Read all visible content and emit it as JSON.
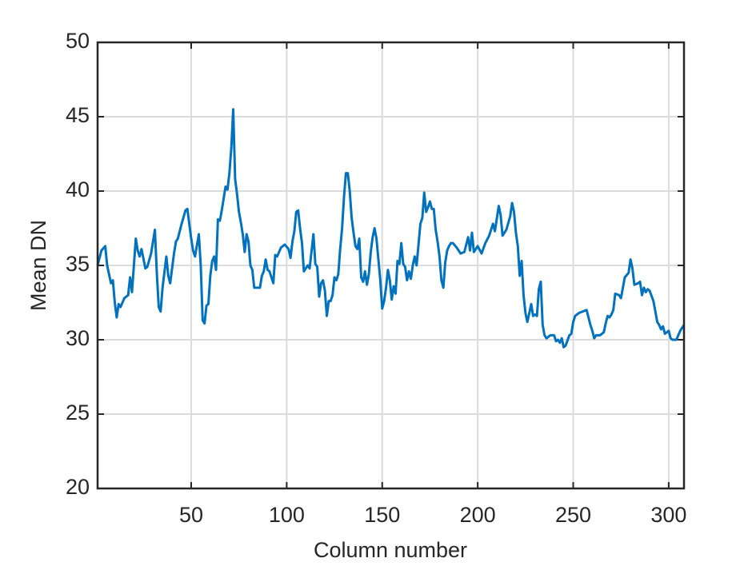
{
  "chart_data": {
    "type": "line",
    "x_label": "Column number",
    "y_label": "Mean DN",
    "xlim": [
      1,
      308
    ],
    "ylim": [
      20,
      50
    ],
    "xticks": [
      50,
      100,
      150,
      200,
      250,
      300
    ],
    "yticks": [
      20,
      25,
      30,
      35,
      40,
      45,
      50
    ],
    "grid": true,
    "series": [
      {
        "name": "Mean DN",
        "color": "#0072bd",
        "x": [
          1,
          3,
          5,
          6,
          8,
          9,
          10,
          11,
          12,
          13,
          15,
          17,
          18,
          19,
          21,
          22,
          23,
          24,
          26,
          27,
          29,
          31,
          32,
          33,
          34,
          35,
          37,
          38,
          39,
          41,
          42,
          43,
          45,
          47,
          48,
          49,
          50,
          51,
          52,
          54,
          55,
          56,
          57,
          58,
          59,
          60,
          61,
          62,
          63,
          64,
          65,
          66,
          67,
          68,
          69,
          70,
          71,
          72,
          73,
          74,
          75,
          76,
          77,
          78,
          79,
          80,
          81,
          82,
          83,
          86,
          87,
          88,
          89,
          90,
          91,
          93,
          94,
          95,
          97,
          99,
          101,
          102,
          103,
          104,
          105,
          106,
          107,
          108,
          109,
          110,
          111,
          112,
          114,
          115,
          116,
          117,
          118,
          119,
          120,
          121,
          122,
          123,
          124,
          125,
          126,
          127,
          128,
          129,
          130,
          131,
          132,
          133,
          134,
          135,
          136,
          137,
          138,
          139,
          140,
          141,
          142,
          143,
          144,
          145,
          146,
          147,
          148,
          149,
          150,
          151,
          152,
          153,
          154,
          155,
          156,
          157,
          158,
          159,
          160,
          161,
          162,
          163,
          164,
          165,
          166,
          167,
          168,
          169,
          170,
          171,
          172,
          173,
          174,
          175,
          176,
          177,
          178,
          179,
          180,
          181,
          182,
          183,
          184,
          185,
          186,
          187,
          189,
          191,
          193,
          195,
          196,
          197,
          198,
          200,
          202,
          204,
          206,
          208,
          209,
          211,
          212,
          213,
          215,
          217,
          218,
          219,
          220,
          221,
          222,
          223,
          224,
          225,
          226,
          227,
          228,
          229,
          230,
          231,
          232,
          233,
          234,
          235,
          236,
          238,
          240,
          241,
          242,
          243,
          244,
          245,
          246,
          248,
          249,
          250,
          251,
          253,
          255,
          257,
          258,
          259,
          260,
          261,
          262,
          264,
          266,
          267,
          268,
          269,
          270,
          271,
          272,
          274,
          275,
          276,
          277,
          279,
          280,
          281,
          282,
          284,
          285,
          286,
          287,
          288,
          289,
          290,
          292,
          293,
          294,
          295,
          296,
          297,
          298,
          300,
          301,
          302,
          304,
          306,
          308
        ],
        "values": [
          35.0,
          36.0,
          36.3,
          35.0,
          33.8,
          34.0,
          32.5,
          31.5,
          32.4,
          32.2,
          32.8,
          33.0,
          34.2,
          33.2,
          36.8,
          36.0,
          35.6,
          36.1,
          34.8,
          34.9,
          35.8,
          37.4,
          34.5,
          32.2,
          31.9,
          33.5,
          35.6,
          34.3,
          33.8,
          35.8,
          36.6,
          36.8,
          37.8,
          38.7,
          38.8,
          37.8,
          36.8,
          36.0,
          35.6,
          37.1,
          35.0,
          31.3,
          31.1,
          32.3,
          32.4,
          34.3,
          35.3,
          35.6,
          34.7,
          38.1,
          38.0,
          38.7,
          39.5,
          40.3,
          40.1,
          41.2,
          42.9,
          45.5,
          40.8,
          39.8,
          38.6,
          37.9,
          37.1,
          35.9,
          37.1,
          36.6,
          35.0,
          34.7,
          33.5,
          33.5,
          34.3,
          34.6,
          35.4,
          34.7,
          34.6,
          33.8,
          35.7,
          35.6,
          36.2,
          36.4,
          36.1,
          35.5,
          36.6,
          37.3,
          38.6,
          38.7,
          37.5,
          36.5,
          34.6,
          34.8,
          35.0,
          34.8,
          37.1,
          35.1,
          34.9,
          32.9,
          33.8,
          34.0,
          33.3,
          31.6,
          32.6,
          32.6,
          33.0,
          34.2,
          34.0,
          34.4,
          36.1,
          37.5,
          39.6,
          41.2,
          41.2,
          40.0,
          38.2,
          37.2,
          36.3,
          36.1,
          36.8,
          34.2,
          33.9,
          34.6,
          33.7,
          34.4,
          35.9,
          36.9,
          37.5,
          36.8,
          35.4,
          34.0,
          32.1,
          32.6,
          33.5,
          34.7,
          34.0,
          32.7,
          33.6,
          33.1,
          35.3,
          35.1,
          36.5,
          35.1,
          34.9,
          34.0,
          34.6,
          34.1,
          35.0,
          35.6,
          35.0,
          36.4,
          37.8,
          38.2,
          39.9,
          38.6,
          38.9,
          39.3,
          38.8,
          38.8,
          37.4,
          36.6,
          35.6,
          34.0,
          33.5,
          35.2,
          36.0,
          36.3,
          36.5,
          36.5,
          36.2,
          35.8,
          35.9,
          36.9,
          36.0,
          37.2,
          35.9,
          36.3,
          35.8,
          36.5,
          37.0,
          37.8,
          37.3,
          39.0,
          38.4,
          37.0,
          37.4,
          38.3,
          39.2,
          38.6,
          37.2,
          36.3,
          34.3,
          35.3,
          33.0,
          31.8,
          31.2,
          31.8,
          32.4,
          31.6,
          31.7,
          31.6,
          33.4,
          33.9,
          31.0,
          30.3,
          30.1,
          30.3,
          30.3,
          29.9,
          30.0,
          29.8,
          30.1,
          29.5,
          29.6,
          30.3,
          30.4,
          31.2,
          31.6,
          31.8,
          31.9,
          32.0,
          31.5,
          31.0,
          30.6,
          30.1,
          30.3,
          30.3,
          30.5,
          31.1,
          31.6,
          31.5,
          31.7,
          32.0,
          33.1,
          33.0,
          32.8,
          33.5,
          34.2,
          34.5,
          35.4,
          34.8,
          33.7,
          33.8,
          33.9,
          33.0,
          33.5,
          33.2,
          33.4,
          33.3,
          32.6,
          31.9,
          31.2,
          31.0,
          30.7,
          30.9,
          30.4,
          30.6,
          30.1,
          30.0,
          30.0,
          30.6,
          31.0
        ]
      }
    ]
  }
}
